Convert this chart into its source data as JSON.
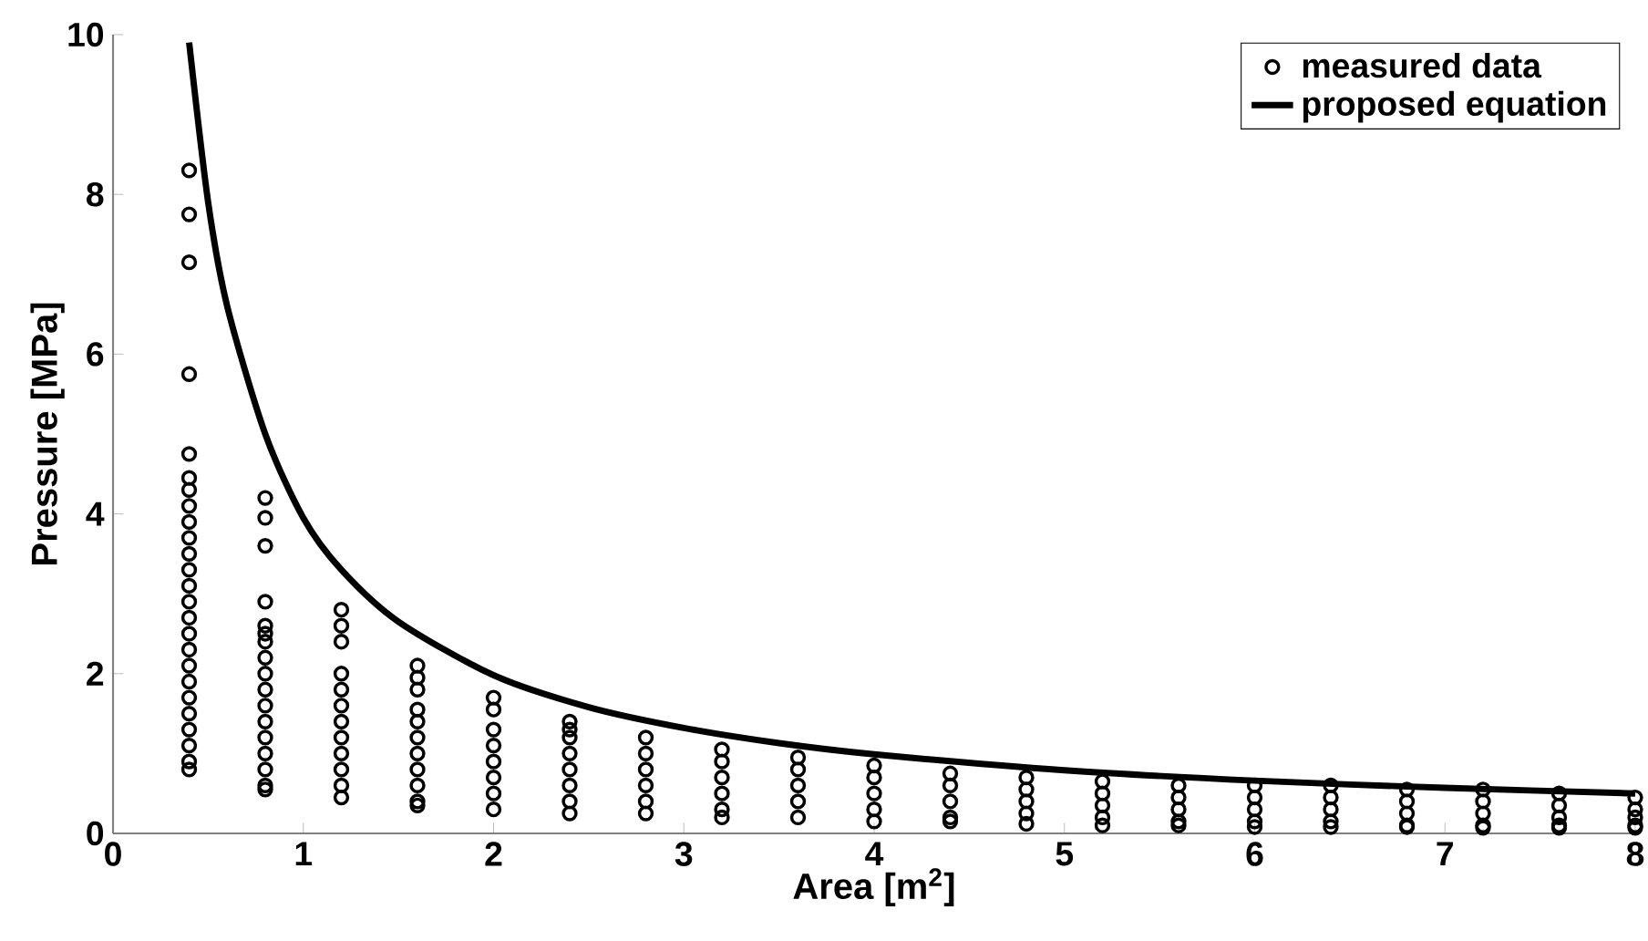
{
  "chart_data": {
    "type": "scatter",
    "xlabel": "Area [m$^{2}$]",
    "ylabel": "Pressure [MPa]",
    "xlim": [
      0,
      8
    ],
    "ylim": [
      0,
      10
    ],
    "xticks": [
      0,
      1,
      2,
      3,
      4,
      5,
      6,
      7,
      8
    ],
    "yticks": [
      0,
      2,
      4,
      6,
      8,
      10
    ],
    "legend": "top right",
    "grid": false,
    "marker": "circle",
    "series": [
      {
        "name": "measured data",
        "color": "#000000",
        "x": [
          0.4,
          0.4,
          0.4,
          0.4,
          0.4,
          0.4,
          0.4,
          0.4,
          0.4,
          0.4,
          0.4,
          0.4,
          0.4,
          0.4,
          0.4,
          0.4,
          0.4,
          0.4,
          0.4,
          0.4,
          0.4,
          0.4,
          0.4,
          0.4,
          0.4,
          0.8,
          0.8,
          0.8,
          0.8,
          0.8,
          0.8,
          0.8,
          0.8,
          0.8,
          0.8,
          0.8,
          0.8,
          0.8,
          0.8,
          0.8,
          0.8,
          0.8,
          1.2,
          1.2,
          1.2,
          1.2,
          1.2,
          1.2,
          1.2,
          1.2,
          1.2,
          1.2,
          1.2,
          1.2,
          1.6,
          1.6,
          1.6,
          1.6,
          1.6,
          1.6,
          1.6,
          1.6,
          1.6,
          1.6,
          1.6,
          2.0,
          2.0,
          2.0,
          2.0,
          2.0,
          2.0,
          2.0,
          2.0,
          2.4,
          2.4,
          2.4,
          2.4,
          2.4,
          2.4,
          2.4,
          2.4,
          2.8,
          2.8,
          2.8,
          2.8,
          2.8,
          2.8,
          3.2,
          3.2,
          3.2,
          3.2,
          3.2,
          3.2,
          3.6,
          3.6,
          3.6,
          3.6,
          3.6,
          4.0,
          4.0,
          4.0,
          4.0,
          4.0,
          4.4,
          4.4,
          4.4,
          4.4,
          4.4,
          4.8,
          4.8,
          4.8,
          4.8,
          4.8,
          5.2,
          5.2,
          5.2,
          5.2,
          5.2,
          5.6,
          5.6,
          5.6,
          5.6,
          5.6,
          6.0,
          6.0,
          6.0,
          6.0,
          6.0,
          6.4,
          6.4,
          6.4,
          6.4,
          6.4,
          6.8,
          6.8,
          6.8,
          6.8,
          6.8,
          7.2,
          7.2,
          7.2,
          7.2,
          7.2,
          7.6,
          7.6,
          7.6,
          7.6,
          7.6,
          8.0,
          8.0,
          8.0,
          8.0,
          8.0
        ],
        "values": [
          8.3,
          7.75,
          7.15,
          5.75,
          4.75,
          4.45,
          4.3,
          4.1,
          3.9,
          3.7,
          3.5,
          3.3,
          3.1,
          2.9,
          2.7,
          2.5,
          2.3,
          2.1,
          1.9,
          1.7,
          1.5,
          1.3,
          1.1,
          0.9,
          0.8,
          4.2,
          3.95,
          3.6,
          2.9,
          2.6,
          2.5,
          2.4,
          2.2,
          2.0,
          1.8,
          1.6,
          1.4,
          1.2,
          1.0,
          0.8,
          0.6,
          0.55,
          2.8,
          2.6,
          2.4,
          2.0,
          1.8,
          1.6,
          1.4,
          1.2,
          1.0,
          0.8,
          0.6,
          0.45,
          2.1,
          1.95,
          1.8,
          1.55,
          1.4,
          1.2,
          1.0,
          0.8,
          0.6,
          0.4,
          0.35,
          1.7,
          1.55,
          1.3,
          1.1,
          0.9,
          0.7,
          0.5,
          0.3,
          1.4,
          1.3,
          1.2,
          1.0,
          0.8,
          0.6,
          0.4,
          0.25,
          1.2,
          1.0,
          0.8,
          0.6,
          0.4,
          0.25,
          1.05,
          0.9,
          0.7,
          0.5,
          0.3,
          0.2,
          0.95,
          0.8,
          0.6,
          0.4,
          0.2,
          0.85,
          0.7,
          0.5,
          0.3,
          0.15,
          0.75,
          0.6,
          0.4,
          0.2,
          0.15,
          0.7,
          0.55,
          0.4,
          0.25,
          0.12,
          0.65,
          0.5,
          0.35,
          0.2,
          0.1,
          0.6,
          0.45,
          0.3,
          0.15,
          0.1,
          0.6,
          0.45,
          0.3,
          0.15,
          0.08,
          0.6,
          0.45,
          0.3,
          0.15,
          0.08,
          0.55,
          0.4,
          0.25,
          0.1,
          0.08,
          0.55,
          0.4,
          0.25,
          0.1,
          0.07,
          0.5,
          0.35,
          0.2,
          0.1,
          0.07,
          0.45,
          0.3,
          0.2,
          0.1,
          0.07
        ]
      },
      {
        "name": "proposed equation",
        "type": "line",
        "color": "#000000",
        "marker": "none",
        "line_style": "solid",
        "x": [
          0.4,
          0.5,
          0.6,
          0.8,
          1.0,
          1.2,
          1.5,
          2.0,
          2.5,
          3.0,
          3.5,
          4.0,
          5.0,
          6.0,
          7.0,
          8.0
        ],
        "values": [
          9.9,
          7.9,
          6.6,
          5.0,
          3.95,
          3.3,
          2.65,
          1.98,
          1.58,
          1.32,
          1.13,
          0.99,
          0.79,
          0.66,
          0.57,
          0.5
        ]
      }
    ]
  }
}
